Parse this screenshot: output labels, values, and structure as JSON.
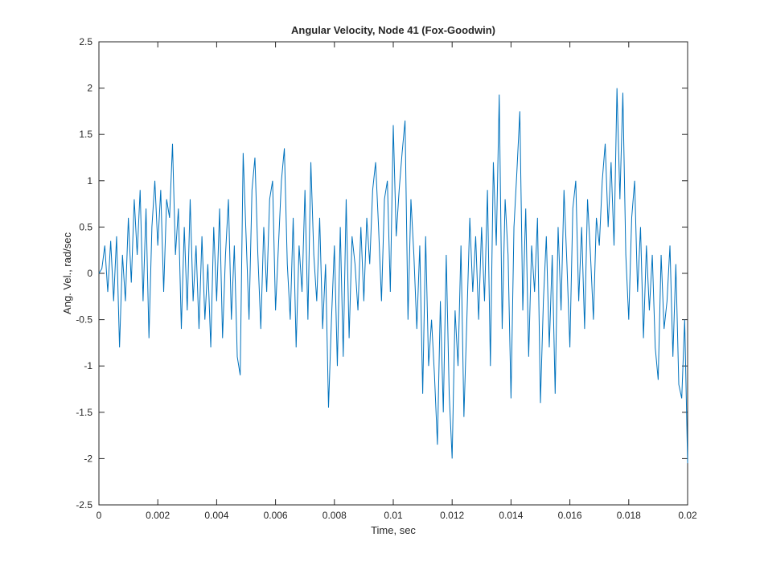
{
  "chart_data": {
    "type": "line",
    "title": "Angular Velocity, Node 41 (Fox-Goodwin)",
    "x_label": "Time, sec",
    "y_label": "Ang. Vel., rad/sec",
    "xlim": [
      0,
      0.02
    ],
    "ylim": [
      -2.5,
      2.5
    ],
    "xticks": [
      0,
      0.002,
      0.004,
      0.006,
      0.008,
      0.01,
      0.012,
      0.014,
      0.016,
      0.018,
      0.02
    ],
    "yticks": [
      -2.5,
      -2,
      -1.5,
      -1,
      -0.5,
      0,
      0.5,
      1,
      1.5,
      2,
      2.5
    ],
    "grid": false,
    "series": [
      {
        "color": "#0072bd",
        "x": [
          0,
          0.0001,
          0.0002,
          0.0003,
          0.0004,
          0.0005,
          0.0006,
          0.0007,
          0.0008,
          0.0009,
          0.001,
          0.0011,
          0.0012,
          0.0013,
          0.0014,
          0.0015,
          0.0016,
          0.0017,
          0.0018,
          0.0019,
          0.002,
          0.0021,
          0.0022,
          0.0023,
          0.0024,
          0.0025,
          0.0026,
          0.0027,
          0.0028,
          0.0029,
          0.003,
          0.0031,
          0.0032,
          0.0033,
          0.0034,
          0.0035,
          0.0036,
          0.0037,
          0.0038,
          0.0039,
          0.004,
          0.0041,
          0.0042,
          0.0043,
          0.0044,
          0.0045,
          0.0046,
          0.0047,
          0.0048,
          0.0049,
          0.005,
          0.0051,
          0.0052,
          0.0053,
          0.0054,
          0.0055,
          0.0056,
          0.0057,
          0.0058,
          0.0059,
          0.006,
          0.0061,
          0.0062,
          0.0063,
          0.0064,
          0.0065,
          0.0066,
          0.0067,
          0.0068,
          0.0069,
          0.007,
          0.0071,
          0.0072,
          0.0073,
          0.0074,
          0.0075,
          0.0076,
          0.0077,
          0.0078,
          0.0079,
          0.008,
          0.0081,
          0.0082,
          0.0083,
          0.0084,
          0.0085,
          0.0086,
          0.0087,
          0.0088,
          0.0089,
          0.009,
          0.0091,
          0.0092,
          0.0093,
          0.0094,
          0.0095,
          0.0096,
          0.0097,
          0.0098,
          0.0099,
          0.01,
          0.0101,
          0.0102,
          0.0103,
          0.0104,
          0.0105,
          0.0106,
          0.0107,
          0.0108,
          0.0109,
          0.011,
          0.0111,
          0.0112,
          0.0113,
          0.0114,
          0.0115,
          0.0116,
          0.0117,
          0.0118,
          0.0119,
          0.012,
          0.0121,
          0.0122,
          0.0123,
          0.0124,
          0.0125,
          0.0126,
          0.0127,
          0.0128,
          0.0129,
          0.013,
          0.0131,
          0.0132,
          0.0133,
          0.0134,
          0.0135,
          0.0136,
          0.0137,
          0.0138,
          0.0139,
          0.014,
          0.0141,
          0.0142,
          0.0143,
          0.0144,
          0.0145,
          0.0146,
          0.0147,
          0.0148,
          0.0149,
          0.015,
          0.0151,
          0.0152,
          0.0153,
          0.0154,
          0.0155,
          0.0156,
          0.0157,
          0.0158,
          0.0159,
          0.016,
          0.0161,
          0.0162,
          0.0163,
          0.0164,
          0.0165,
          0.0166,
          0.0167,
          0.0168,
          0.0169,
          0.017,
          0.0171,
          0.0172,
          0.0173,
          0.0174,
          0.0175,
          0.0176,
          0.0177,
          0.0178,
          0.0179,
          0.018,
          0.0181,
          0.0182,
          0.0183,
          0.0184,
          0.0185,
          0.0186,
          0.0187,
          0.0188,
          0.0189,
          0.019,
          0.0191,
          0.0192,
          0.0193,
          0.0194,
          0.0195,
          0.0196,
          0.0197,
          0.0198,
          0.0199,
          0.02
        ],
        "values": [
          0,
          0.05,
          0.3,
          -0.2,
          0.35,
          -0.3,
          0.4,
          -0.8,
          0.2,
          -0.3,
          0.6,
          -0.1,
          0.8,
          0.2,
          0.9,
          -0.3,
          0.7,
          -0.7,
          0.5,
          1.0,
          0.3,
          0.9,
          -0.2,
          0.8,
          0.6,
          1.4,
          0.2,
          0.7,
          -0.6,
          0.5,
          -0.4,
          0.8,
          -0.3,
          0.3,
          -0.6,
          0.4,
          -0.5,
          0.1,
          -0.8,
          0.5,
          -0.3,
          0.7,
          -0.7,
          0.2,
          0.8,
          -0.5,
          0.3,
          -0.9,
          -1.1,
          1.3,
          0.4,
          -0.5,
          0.9,
          1.25,
          0.2,
          -0.6,
          0.5,
          -0.2,
          0.8,
          1.0,
          -0.4,
          0.3,
          1.0,
          1.35,
          0.1,
          -0.5,
          0.6,
          -0.8,
          0.3,
          -0.2,
          0.9,
          -0.5,
          1.2,
          0.2,
          -0.3,
          0.6,
          -0.6,
          0.1,
          -1.45,
          -0.5,
          0.3,
          -1.0,
          0.5,
          -0.9,
          0.8,
          -0.7,
          0.4,
          0.1,
          -0.4,
          0.5,
          -0.3,
          0.6,
          0.1,
          0.9,
          1.2,
          0.5,
          -0.3,
          0.8,
          1.0,
          -0.2,
          1.6,
          0.4,
          0.9,
          1.3,
          1.65,
          -0.5,
          0.8,
          0.2,
          -0.6,
          0.3,
          -1.3,
          0.4,
          -1.0,
          -0.5,
          -1.1,
          -1.85,
          -0.3,
          -1.5,
          0.2,
          -1.3,
          -2.0,
          -0.4,
          -1.0,
          0.3,
          -1.55,
          -0.5,
          0.6,
          -0.2,
          0.4,
          -0.5,
          0.5,
          -0.3,
          0.9,
          -1.0,
          1.2,
          0.3,
          1.93,
          -0.6,
          0.8,
          0.2,
          -1.35,
          0.5,
          1.1,
          1.75,
          -0.4,
          0.7,
          -0.9,
          0.3,
          -0.2,
          0.6,
          -1.4,
          -0.3,
          0.4,
          -0.8,
          0.2,
          -1.3,
          0.5,
          -0.4,
          0.9,
          0.1,
          -0.8,
          0.7,
          1.0,
          -0.3,
          0.5,
          -0.6,
          0.8,
          0.2,
          -0.5,
          0.6,
          0.3,
          1.0,
          1.4,
          0.5,
          1.2,
          0.3,
          2.0,
          0.8,
          1.95,
          0.2,
          -0.5,
          0.6,
          1.0,
          -0.2,
          0.5,
          -0.7,
          0.3,
          -0.4,
          0.2,
          -0.8,
          -1.15,
          0.2,
          -0.6,
          -0.3,
          0.3,
          -0.9,
          0.1,
          -1.2,
          -1.35,
          -0.5,
          -2.05
        ]
      }
    ]
  }
}
